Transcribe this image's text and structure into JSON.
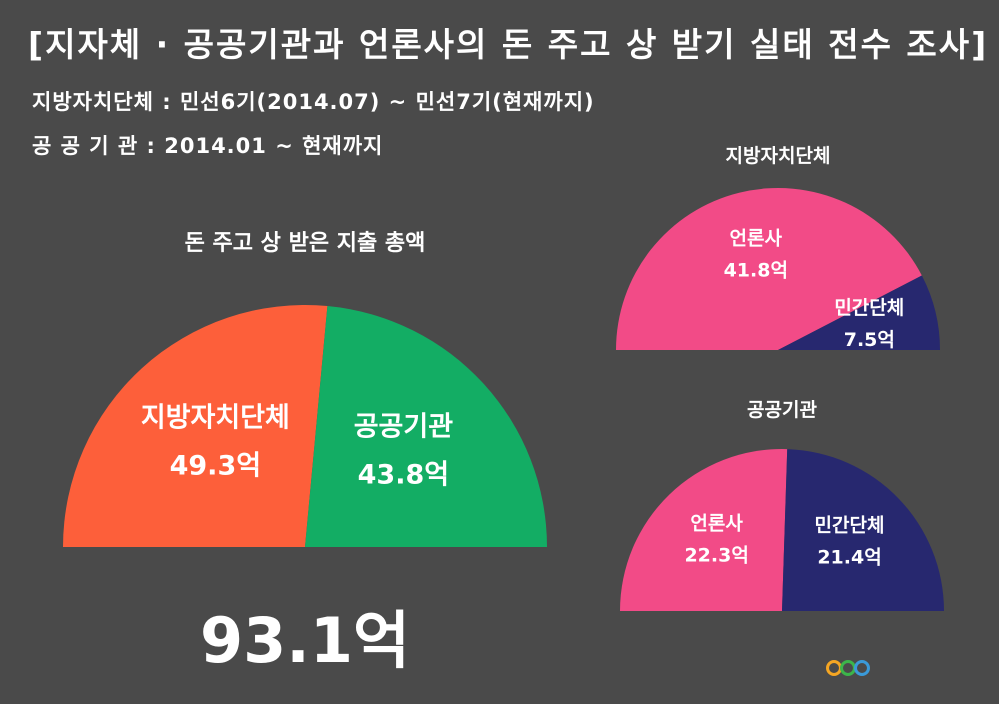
{
  "header": {
    "title": "[지자체 · 공공기관과 언론사의 돈 주고 상 받기 실태 전수 조사]",
    "period_local": "지방자치단체 : 민선6기(2014.07) ~ 민선7기(현재까지)",
    "period_public": "공 공  기 관 : 2014.01 ~ 현재까지"
  },
  "chart_data": [
    {
      "type": "pie",
      "title": "돈 주고 상 받은 지출 총액",
      "categories": [
        "지방자치단체",
        "공공기관"
      ],
      "values": [
        49.3,
        43.8
      ],
      "value_labels": [
        "49.3억",
        "43.8억"
      ],
      "colors": [
        "#fd5f3a",
        "#13ad64"
      ],
      "shape": "semicircle",
      "total_label": "93.1억"
    },
    {
      "type": "pie",
      "title": "지방자치단체",
      "categories": [
        "언론사",
        "민간단체"
      ],
      "values": [
        41.8,
        7.5
      ],
      "value_labels": [
        "41.8억",
        "7.5억"
      ],
      "colors": [
        "#f24b87",
        "#27286f"
      ],
      "shape": "semicircle"
    },
    {
      "type": "pie",
      "title": "공공기관",
      "categories": [
        "언론사",
        "민간단체"
      ],
      "values": [
        22.3,
        21.4
      ],
      "value_labels": [
        "22.3억",
        "21.4억"
      ],
      "colors": [
        "#f24b87",
        "#27286f"
      ],
      "shape": "semicircle"
    }
  ],
  "logo": {
    "text": "",
    "colors": [
      "#f5a623",
      "#3cb54a",
      "#3a9ad9"
    ]
  }
}
